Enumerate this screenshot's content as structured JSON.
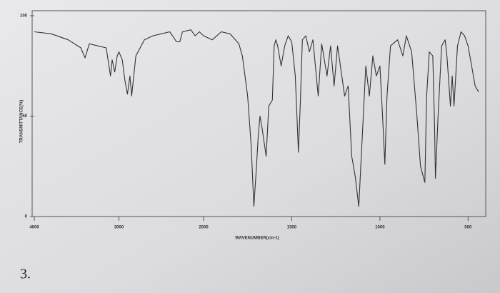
{
  "chart_data": {
    "type": "line",
    "xlabel": "WAVENUMBER(cm-1)",
    "ylabel": "TRANSMITTANCE(%)",
    "xlim": [
      4000,
      400
    ],
    "xticks": [
      4000,
      3000,
      2000,
      1500,
      1000,
      500
    ],
    "ylim": [
      0,
      100
    ],
    "yticks": [
      0,
      50,
      100
    ],
    "series": [
      {
        "color": "#333333",
        "x": [
          4000,
          3800,
          3600,
          3450,
          3400,
          3350,
          3250,
          3150,
          3100,
          3080,
          3050,
          3020,
          3000,
          2960,
          2930,
          2900,
          2870,
          2850,
          2800,
          2700,
          2600,
          2500,
          2400,
          2350,
          2320,
          2280,
          2250,
          2150,
          2100,
          2050,
          2000,
          1950,
          1900,
          1850,
          1800,
          1780,
          1750,
          1730,
          1715,
          1700,
          1690,
          1680,
          1670,
          1645,
          1630,
          1610,
          1600,
          1590,
          1580,
          1560,
          1540,
          1520,
          1500,
          1480,
          1462,
          1450,
          1440,
          1420,
          1400,
          1380,
          1350,
          1330,
          1300,
          1280,
          1260,
          1240,
          1200,
          1180,
          1160,
          1140,
          1120,
          1100,
          1080,
          1060,
          1040,
          1020,
          1000,
          985,
          972,
          960,
          940,
          900,
          870,
          850,
          820,
          790,
          770,
          745,
          735,
          720,
          700,
          690,
          685,
          670,
          650,
          630,
          620,
          600,
          590,
          580,
          560,
          540,
          520,
          500,
          480,
          460,
          440
        ],
        "values": [
          92,
          91,
          88,
          84,
          79,
          86,
          85,
          84,
          70,
          78,
          72,
          80,
          82,
          78,
          68,
          61,
          70,
          60,
          80,
          88,
          90,
          91,
          92,
          89,
          87,
          87,
          92,
          93,
          90,
          92,
          90,
          88,
          92,
          91,
          86,
          80,
          60,
          35,
          5,
          25,
          40,
          50,
          45,
          30,
          55,
          58,
          85,
          88,
          85,
          75,
          85,
          90,
          87,
          70,
          32,
          60,
          88,
          90,
          82,
          88,
          60,
          86,
          70,
          85,
          65,
          85,
          60,
          65,
          30,
          20,
          5,
          40,
          75,
          60,
          80,
          70,
          75,
          50,
          26,
          60,
          85,
          88,
          80,
          90,
          82,
          50,
          25,
          17,
          60,
          82,
          80,
          45,
          19,
          50,
          85,
          88,
          80,
          55,
          70,
          55,
          85,
          92,
          90,
          85,
          75,
          65,
          62
        ]
      }
    ]
  },
  "label": "3."
}
